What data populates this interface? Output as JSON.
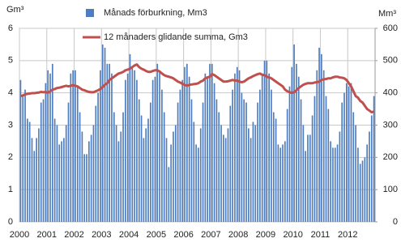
{
  "chart_data": {
    "type": "bar_line",
    "y_unit": "Gm³",
    "y2_unit": "Mm³",
    "categories": [
      "2000",
      null,
      null,
      null,
      null,
      null,
      null,
      null,
      null,
      null,
      null,
      null,
      "2001",
      null,
      null,
      null,
      null,
      null,
      null,
      null,
      null,
      null,
      null,
      null,
      "2002",
      null,
      null,
      null,
      null,
      null,
      null,
      null,
      null,
      null,
      null,
      null,
      "2003",
      null,
      null,
      null,
      null,
      null,
      null,
      null,
      null,
      null,
      null,
      null,
      "2004",
      null,
      null,
      null,
      null,
      null,
      null,
      null,
      null,
      null,
      null,
      null,
      "2005",
      null,
      null,
      null,
      null,
      null,
      null,
      null,
      null,
      null,
      null,
      null,
      "2006",
      null,
      null,
      null,
      null,
      null,
      null,
      null,
      null,
      null,
      null,
      null,
      "2007",
      null,
      null,
      null,
      null,
      null,
      null,
      null,
      null,
      null,
      null,
      null,
      "2008",
      null,
      null,
      null,
      null,
      null,
      null,
      null,
      null,
      null,
      null,
      null,
      "2009",
      null,
      null,
      null,
      null,
      null,
      null,
      null,
      null,
      null,
      null,
      null,
      "2010",
      null,
      null,
      null,
      null,
      null,
      null,
      null,
      null,
      null,
      null,
      null,
      "2011",
      null,
      null,
      null,
      null,
      null,
      null,
      null,
      null,
      null,
      null,
      null,
      "2012",
      null,
      null,
      null,
      null,
      null,
      null,
      null,
      null,
      null,
      null,
      null
    ],
    "series": [
      {
        "name": "Månads förburkning, Mm3",
        "kind": "bar",
        "axis": "y2",
        "color": "#4f7ec0",
        "values": [
          440,
          390,
          410,
          320,
          310,
          260,
          220,
          260,
          290,
          370,
          380,
          430,
          470,
          460,
          490,
          320,
          300,
          240,
          250,
          260,
          300,
          370,
          460,
          470,
          470,
          420,
          340,
          280,
          210,
          210,
          250,
          270,
          300,
          360,
          400,
          470,
          550,
          540,
          490,
          490,
          460,
          340,
          300,
          250,
          280,
          340,
          440,
          460,
          520,
          480,
          470,
          440,
          380,
          330,
          260,
          290,
          320,
          370,
          440,
          450,
          490,
          470,
          410,
          340,
          260,
          170,
          240,
          280,
          300,
          370,
          410,
          440,
          480,
          490,
          450,
          380,
          310,
          240,
          230,
          290,
          370,
          460,
          450,
          490,
          490,
          430,
          380,
          340,
          300,
          270,
          260,
          290,
          360,
          410,
          460,
          480,
          470,
          400,
          380,
          370,
          290,
          260,
          310,
          300,
          370,
          410,
          460,
          500,
          500,
          460,
          410,
          340,
          320,
          240,
          230,
          240,
          250,
          350,
          420,
          480,
          550,
          490,
          450,
          380,
          300,
          220,
          270,
          270,
          330,
          390,
          470,
          540,
          520,
          470,
          390,
          350,
          250,
          230,
          230,
          240,
          280,
          370,
          400,
          430,
          420,
          430,
          340,
          300,
          230,
          180,
          190,
          200,
          240,
          280,
          330,
          390
        ]
      },
      {
        "name": "12 månaders glidande summa, Gm3",
        "kind": "line",
        "color": "#c0504d",
        "values": [
          3.9,
          3.92,
          3.95,
          3.97,
          3.98,
          3.99,
          3.99,
          4.0,
          4.01,
          4.03,
          4.02,
          4.03,
          4.0,
          4.05,
          4.1,
          4.12,
          4.15,
          4.16,
          4.18,
          4.2,
          4.22,
          4.2,
          4.22,
          4.24,
          4.22,
          4.2,
          4.15,
          4.1,
          4.08,
          4.05,
          4.03,
          4.02,
          4.02,
          4.05,
          4.08,
          4.12,
          4.18,
          4.25,
          4.3,
          4.4,
          4.45,
          4.5,
          4.55,
          4.6,
          4.62,
          4.65,
          4.7,
          4.72,
          4.75,
          4.8,
          4.85,
          4.88,
          4.8,
          4.75,
          4.72,
          4.68,
          4.65,
          4.65,
          4.68,
          4.7,
          4.7,
          4.66,
          4.6,
          4.55,
          4.52,
          4.5,
          4.48,
          4.45,
          4.4,
          4.35,
          4.32,
          4.28,
          4.25,
          4.22,
          4.25,
          4.26,
          4.27,
          4.28,
          4.3,
          4.35,
          4.38,
          4.45,
          4.48,
          4.5,
          4.58,
          4.55,
          4.5,
          4.45,
          4.4,
          4.35,
          4.35,
          4.36,
          4.38,
          4.4,
          4.38,
          4.38,
          4.35,
          4.33,
          4.35,
          4.4,
          4.45,
          4.48,
          4.52,
          4.55,
          4.58,
          4.6,
          4.56,
          4.55,
          4.5,
          4.48,
          4.45,
          4.4,
          4.35,
          4.3,
          4.25,
          4.2,
          4.1,
          4.05,
          4.02,
          4.0,
          4.02,
          4.08,
          4.15,
          4.2,
          4.25,
          4.28,
          4.3,
          4.3,
          4.3,
          4.32,
          4.33,
          4.35,
          4.4,
          4.42,
          4.43,
          4.45,
          4.45,
          4.48,
          4.5,
          4.5,
          4.48,
          4.47,
          4.45,
          4.4,
          4.3,
          4.2,
          4.05,
          3.9,
          3.85,
          3.75,
          3.7,
          3.6,
          3.5,
          3.45,
          3.4,
          3.42
        ]
      }
    ],
    "ylim": [
      0,
      6
    ],
    "yticks": [
      0,
      1,
      2,
      3,
      4,
      5,
      6
    ],
    "y2lim": [
      0,
      600
    ],
    "y2ticks": [
      0,
      100,
      200,
      300,
      400,
      500,
      600
    ],
    "grid": true
  }
}
